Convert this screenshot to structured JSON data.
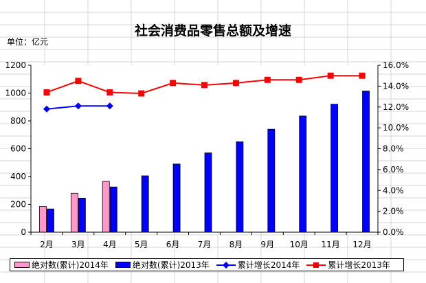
{
  "unit_label": "单位：亿元",
  "chart_data": {
    "type": "bar",
    "title": "社会消费品零售总额及增速",
    "categories": [
      "2月",
      "3月",
      "4月",
      "5月",
      "6月",
      "7月",
      "8月",
      "9月",
      "10月",
      "11月",
      "12月"
    ],
    "ylim_left": [
      0,
      1200
    ],
    "yticks_left": [
      "0",
      "200",
      "400",
      "600",
      "800",
      "1000",
      "1200"
    ],
    "ylim_right": [
      0,
      16
    ],
    "yticks_right": [
      "0.0%",
      "2.0%",
      "4.0%",
      "6.0%",
      "8.0%",
      "10.0%",
      "12.0%",
      "14.0%",
      "16.0%"
    ],
    "grid": false,
    "legend_position": "bottom",
    "series": [
      {
        "name": "绝对数(累计)2014年",
        "kind": "bar",
        "axis": "left",
        "color": "#ff99cc",
        "values": [
          185,
          280,
          365,
          null,
          null,
          null,
          null,
          null,
          null,
          null,
          null
        ]
      },
      {
        "name": "绝对数(累计)2013年",
        "kind": "bar",
        "axis": "left",
        "color": "#0000ff",
        "values": [
          167,
          245,
          325,
          405,
          490,
          570,
          650,
          740,
          835,
          920,
          1015
        ]
      },
      {
        "name": "累计增长2014年",
        "kind": "line",
        "axis": "right",
        "color": "#0000ff",
        "marker": "diamond",
        "values": [
          11.8,
          12.1,
          12.1,
          null,
          null,
          null,
          null,
          null,
          null,
          null,
          null
        ]
      },
      {
        "name": "累计增长2013年",
        "kind": "line",
        "axis": "right",
        "color": "#ff0000",
        "marker": "square",
        "values": [
          13.4,
          14.5,
          13.4,
          13.3,
          14.3,
          14.1,
          14.3,
          14.6,
          14.6,
          15.0,
          15.0
        ]
      }
    ]
  }
}
